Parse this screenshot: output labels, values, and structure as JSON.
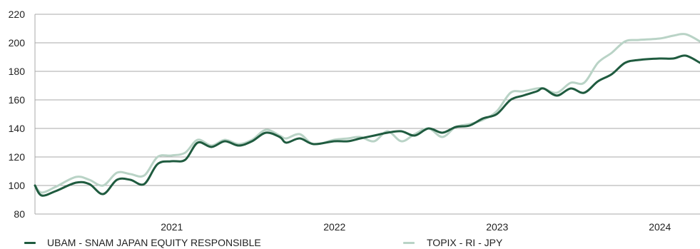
{
  "chart_data": {
    "type": "line",
    "title": "",
    "xlabel": "",
    "ylabel": "",
    "ylim": [
      80,
      220
    ],
    "yticks": [
      80,
      100,
      120,
      140,
      160,
      180,
      200,
      220
    ],
    "xticks": [
      "2021",
      "2022",
      "2023",
      "2024"
    ],
    "grid": "horizontal",
    "legend_position": "bottom",
    "series": [
      {
        "name": "UBAM - SNAM JAPAN EQUITY RESPONSIBLE",
        "color": "#1f5b3f",
        "points": [
          [
            "2020-02-29",
            100
          ],
          [
            "2020-03-15",
            93
          ],
          [
            "2020-04-15",
            96
          ],
          [
            "2020-05-31",
            102
          ],
          [
            "2020-06-30",
            101
          ],
          [
            "2020-07-31",
            94
          ],
          [
            "2020-08-31",
            104
          ],
          [
            "2020-09-30",
            104
          ],
          [
            "2020-10-31",
            101
          ],
          [
            "2020-11-30",
            115
          ],
          [
            "2020-12-31",
            117
          ],
          [
            "2021-01-31",
            118
          ],
          [
            "2021-02-28",
            130
          ],
          [
            "2021-03-31",
            127
          ],
          [
            "2021-04-30",
            131
          ],
          [
            "2021-05-31",
            128
          ],
          [
            "2021-06-30",
            131
          ],
          [
            "2021-07-31",
            137
          ],
          [
            "2021-08-31",
            134
          ],
          [
            "2021-09-15",
            130
          ],
          [
            "2021-10-15",
            133
          ],
          [
            "2021-11-15",
            129
          ],
          [
            "2021-12-31",
            131
          ],
          [
            "2022-01-31",
            131
          ],
          [
            "2022-02-28",
            133
          ],
          [
            "2022-03-31",
            135
          ],
          [
            "2022-04-30",
            137
          ],
          [
            "2022-05-31",
            138
          ],
          [
            "2022-06-30",
            135
          ],
          [
            "2022-07-31",
            140
          ],
          [
            "2022-08-31",
            137
          ],
          [
            "2022-09-30",
            141
          ],
          [
            "2022-10-31",
            142
          ],
          [
            "2022-11-30",
            147
          ],
          [
            "2022-12-31",
            150
          ],
          [
            "2023-01-31",
            160
          ],
          [
            "2023-02-28",
            163
          ],
          [
            "2023-03-31",
            166
          ],
          [
            "2023-04-15",
            168
          ],
          [
            "2023-05-15",
            163
          ],
          [
            "2023-06-15",
            168
          ],
          [
            "2023-07-15",
            165
          ],
          [
            "2023-08-15",
            173
          ],
          [
            "2023-09-15",
            178
          ],
          [
            "2023-10-15",
            186
          ],
          [
            "2023-11-15",
            188
          ],
          [
            "2023-12-31",
            189
          ],
          [
            "2024-01-31",
            189
          ],
          [
            "2024-02-28",
            191
          ],
          [
            "2024-03-31",
            186
          ]
        ]
      },
      {
        "name": "TOPIX - RI - JPY",
        "color": "#b9d3c6",
        "points": [
          [
            "2020-02-29",
            100
          ],
          [
            "2020-03-15",
            95
          ],
          [
            "2020-04-15",
            99
          ],
          [
            "2020-05-31",
            106
          ],
          [
            "2020-06-30",
            104
          ],
          [
            "2020-07-31",
            100
          ],
          [
            "2020-08-31",
            109
          ],
          [
            "2020-09-30",
            108
          ],
          [
            "2020-10-31",
            107
          ],
          [
            "2020-11-30",
            120
          ],
          [
            "2020-12-31",
            121
          ],
          [
            "2021-01-31",
            123
          ],
          [
            "2021-02-28",
            132
          ],
          [
            "2021-03-31",
            128
          ],
          [
            "2021-04-30",
            132
          ],
          [
            "2021-05-31",
            129
          ],
          [
            "2021-06-30",
            132
          ],
          [
            "2021-07-31",
            139
          ],
          [
            "2021-08-31",
            135
          ],
          [
            "2021-09-15",
            133
          ],
          [
            "2021-10-15",
            136
          ],
          [
            "2021-11-15",
            129
          ],
          [
            "2021-12-31",
            132
          ],
          [
            "2022-01-31",
            133
          ],
          [
            "2022-02-28",
            134
          ],
          [
            "2022-03-31",
            131
          ],
          [
            "2022-04-30",
            138
          ],
          [
            "2022-05-31",
            131
          ],
          [
            "2022-06-30",
            136
          ],
          [
            "2022-07-31",
            140
          ],
          [
            "2022-08-31",
            134
          ],
          [
            "2022-09-30",
            141
          ],
          [
            "2022-10-31",
            143
          ],
          [
            "2022-11-30",
            146
          ],
          [
            "2022-12-31",
            152
          ],
          [
            "2023-01-31",
            165
          ],
          [
            "2023-02-28",
            166
          ],
          [
            "2023-03-31",
            168
          ],
          [
            "2023-04-15",
            168
          ],
          [
            "2023-05-15",
            165
          ],
          [
            "2023-06-15",
            172
          ],
          [
            "2023-07-15",
            172
          ],
          [
            "2023-08-15",
            186
          ],
          [
            "2023-09-15",
            193
          ],
          [
            "2023-10-15",
            201
          ],
          [
            "2023-11-15",
            202
          ],
          [
            "2023-12-31",
            203
          ],
          [
            "2024-01-31",
            205
          ],
          [
            "2024-02-28",
            206
          ],
          [
            "2024-03-31",
            201
          ]
        ]
      }
    ]
  }
}
